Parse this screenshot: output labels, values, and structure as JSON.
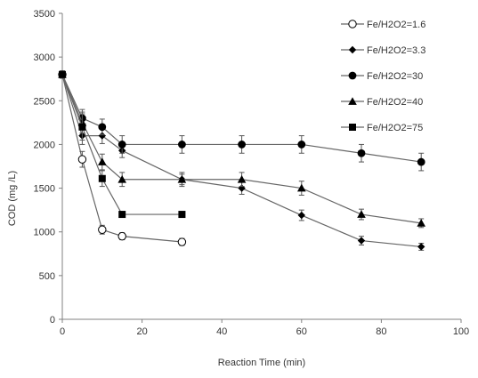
{
  "chart_data": {
    "type": "line",
    "title": "",
    "xlabel": "Reaction Time (min)",
    "ylabel": "COD  (mg /L)",
    "xlim": [
      0,
      100
    ],
    "ylim": [
      0,
      3500
    ],
    "xticks": [
      0,
      20,
      40,
      60,
      80,
      100
    ],
    "yticks": [
      0,
      500,
      1000,
      1500,
      2000,
      2500,
      3000,
      3500
    ],
    "grid": false,
    "legend_position": "top-right",
    "series": [
      {
        "name": "Fe/H2O2=1.6",
        "marker": "circle-open",
        "x": [
          0,
          5,
          10,
          15,
          30
        ],
        "y": [
          2800,
          1830,
          1025,
          950,
          885
        ],
        "err": [
          40,
          90,
          50,
          40,
          40
        ]
      },
      {
        "name": "Fe/H2O2=3.3",
        "marker": "diamond",
        "x": [
          0,
          5,
          10,
          15,
          30,
          45,
          60,
          75,
          90
        ],
        "y": [
          2800,
          2100,
          2100,
          1930,
          1600,
          1500,
          1190,
          900,
          830
        ],
        "err": [
          40,
          100,
          90,
          80,
          60,
          70,
          60,
          50,
          40
        ]
      },
      {
        "name": "Fe/H2O2=30",
        "marker": "circle",
        "x": [
          0,
          5,
          10,
          15,
          30,
          45,
          60,
          75,
          90
        ],
        "y": [
          2800,
          2300,
          2200,
          2000,
          2000,
          2000,
          2000,
          1900,
          1800
        ],
        "err": [
          40,
          100,
          90,
          100,
          100,
          100,
          100,
          100,
          100
        ]
      },
      {
        "name": "Fe/H2O2=40",
        "marker": "triangle",
        "x": [
          0,
          5,
          10,
          15,
          30,
          45,
          60,
          75,
          90
        ],
        "y": [
          2800,
          2250,
          1800,
          1600,
          1600,
          1600,
          1500,
          1200,
          1100
        ],
        "err": [
          40,
          120,
          90,
          80,
          80,
          80,
          80,
          60,
          50
        ]
      },
      {
        "name": "Fe/H2O2=75",
        "marker": "square",
        "x": [
          0,
          5,
          10,
          15,
          30
        ],
        "y": [
          2800,
          2200,
          1610,
          1200,
          1200
        ],
        "err": [
          40,
          150,
          90,
          30,
          30
        ]
      }
    ],
    "colors": {
      "line": "#666666",
      "marker": "#000000",
      "axis": "#808080",
      "text": "#333333"
    }
  }
}
